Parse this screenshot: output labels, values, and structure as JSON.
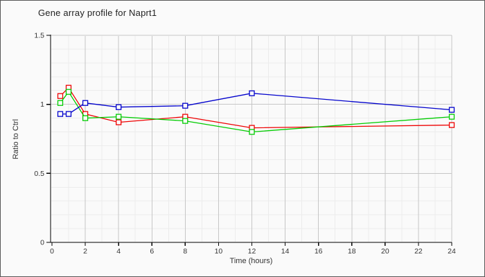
{
  "window": {
    "background": "#fafafa",
    "border_color": "#565656"
  },
  "chart_data": {
    "type": "line",
    "title": "Gene array profile for Naprt1",
    "xlabel": "Time (hours)",
    "ylabel": "Ratio to Ctrl",
    "xlim": [
      0,
      24
    ],
    "ylim": [
      0,
      1.5
    ],
    "x": [
      0.5,
      1,
      2,
      4,
      8,
      12,
      24
    ],
    "series": [
      {
        "name": "red-series",
        "color": "#ee0000",
        "marker": "open-square",
        "values": [
          1.06,
          1.12,
          0.93,
          0.87,
          0.91,
          0.83,
          0.85
        ]
      },
      {
        "name": "green-series",
        "color": "#00cc00",
        "marker": "open-square",
        "values": [
          1.01,
          1.09,
          0.9,
          0.91,
          0.88,
          0.8,
          0.91
        ]
      },
      {
        "name": "blue-series",
        "color": "#0000cc",
        "marker": "open-square",
        "values": [
          0.93,
          0.93,
          1.01,
          0.98,
          0.99,
          1.08,
          0.96
        ]
      }
    ],
    "xticks": {
      "major": [
        0,
        2,
        4,
        6,
        8,
        10,
        12,
        14,
        16,
        18,
        20,
        22,
        24
      ],
      "minor_step": 1
    },
    "yticks": {
      "major": [
        0,
        0.5,
        1,
        1.5
      ],
      "labels": [
        "0",
        "0.5",
        "1",
        "1.5"
      ],
      "minor_step": 0.1
    },
    "grid": {
      "major_color": "#c6c6c6",
      "minor_color": "#ececec",
      "axis_color": "#000000",
      "tick_label_color": "#333333"
    },
    "legend": "none"
  }
}
